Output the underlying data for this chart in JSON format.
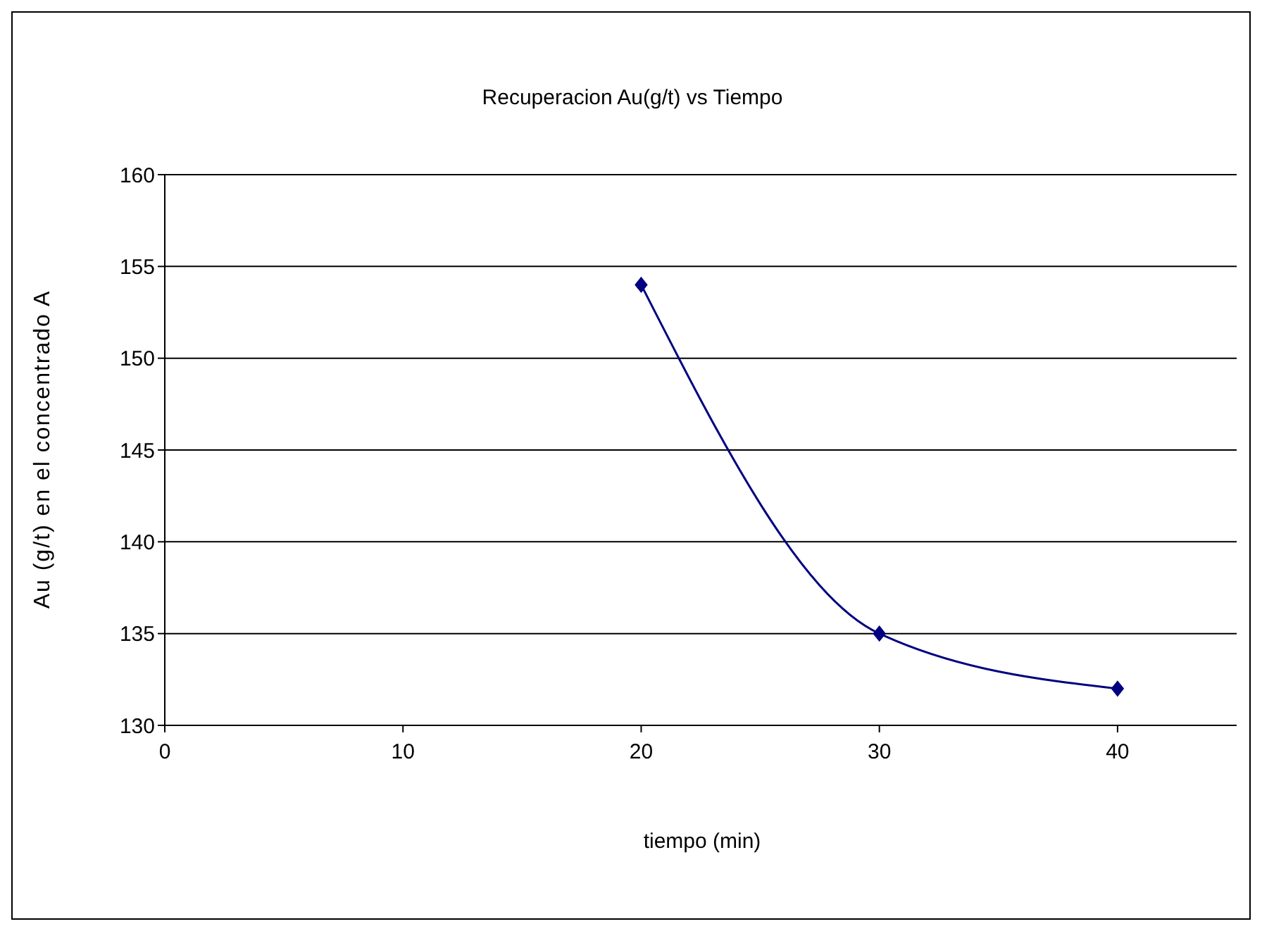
{
  "chart_data": {
    "type": "line",
    "title": "Recuperacion Au(g/t) vs Tiempo",
    "xlabel": "tiempo (min)",
    "ylabel": "Au (g/t) en el concentrado A",
    "x": [
      20,
      30,
      40
    ],
    "series": [
      {
        "color": "#000080",
        "values": [
          154,
          135,
          132
        ]
      }
    ],
    "xlim": [
      0,
      45
    ],
    "xticks": [
      0,
      10,
      20,
      30,
      40
    ],
    "ylim": [
      130,
      160
    ],
    "yticks": [
      130,
      135,
      140,
      145,
      150,
      155,
      160
    ],
    "grid": "y",
    "marker": "diamond",
    "legend": false
  }
}
